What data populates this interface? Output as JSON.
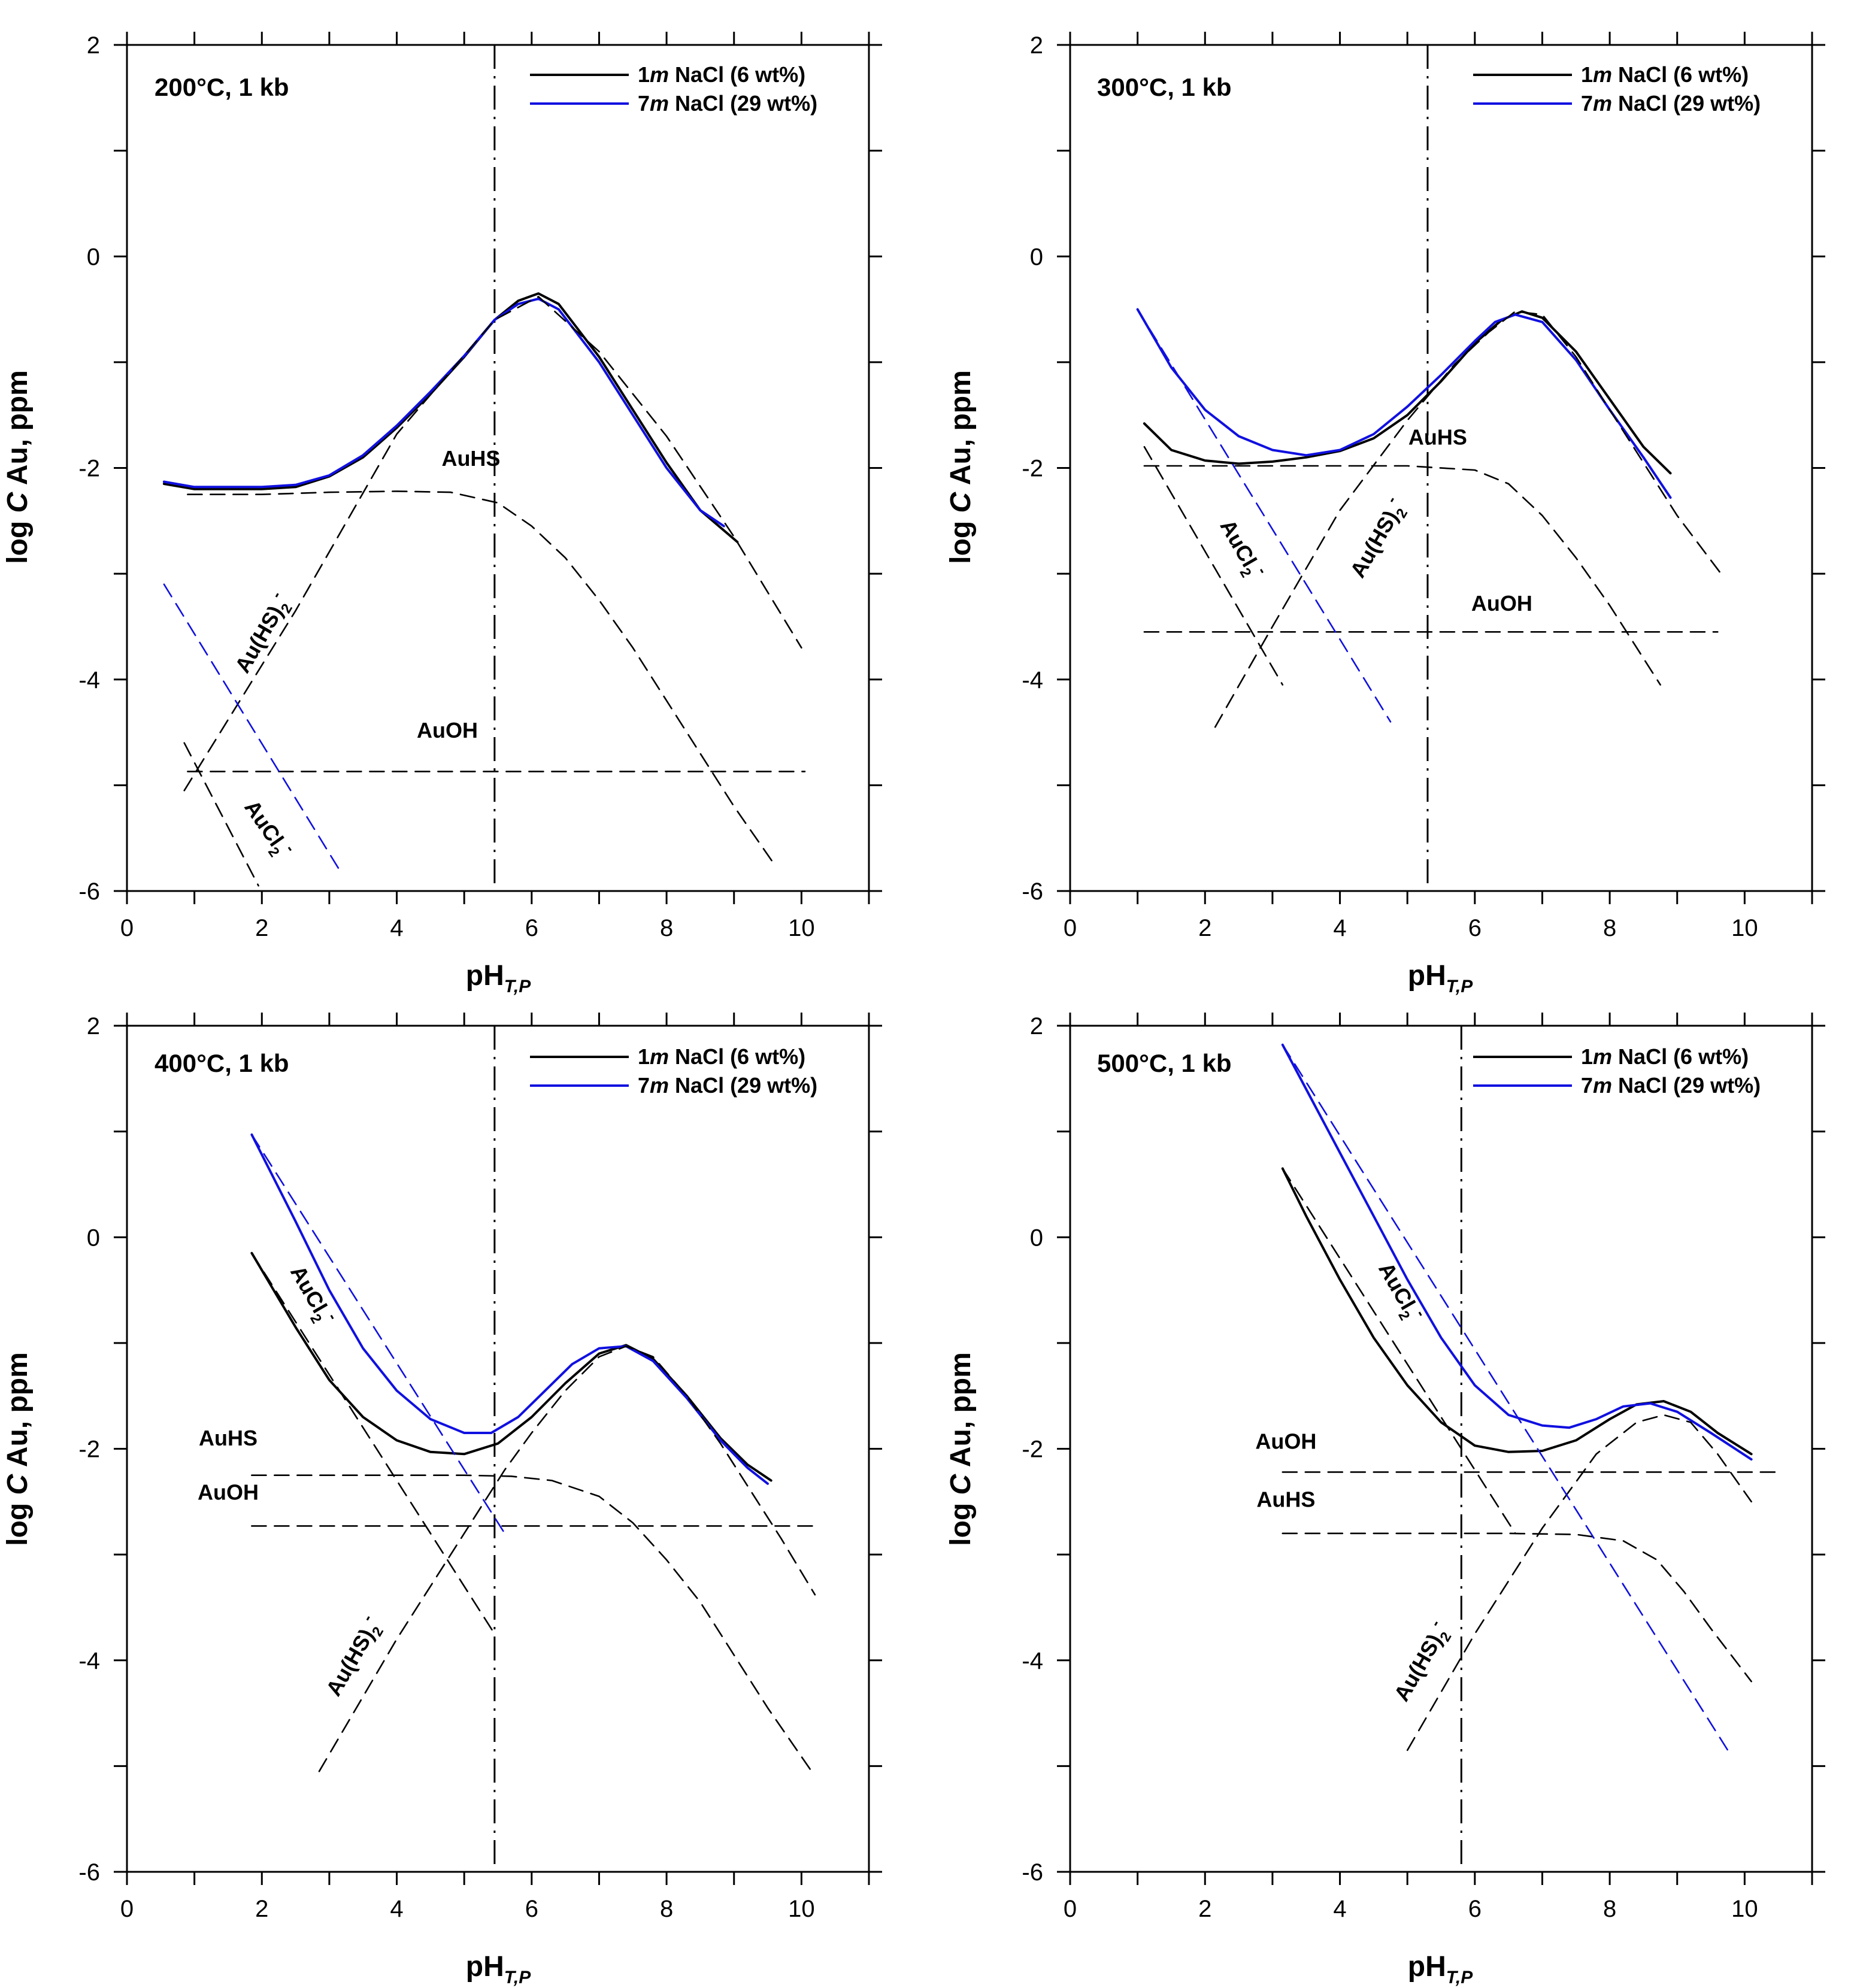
{
  "colors": {
    "black": "#000000",
    "blue": "#1010e0"
  },
  "chart_data": [
    {
      "type": "line",
      "title": "200°C, 1 kb",
      "xlabel": "pH",
      "xlabel_sub": "T,P",
      "ylabel_pre": "log ",
      "ylabel_italic": "C",
      "ylabel_post": " Au, ppm",
      "xlim": [
        0,
        11
      ],
      "ylim": [
        -6,
        2
      ],
      "xticks": [
        0,
        2,
        4,
        6,
        8,
        10
      ],
      "yticks": [
        2,
        0,
        -2,
        -4,
        -6
      ],
      "legend": [
        {
          "prefix": "1",
          "italic": "m",
          "rest": " NaCl (6 wt%)",
          "color": "#000000"
        },
        {
          "prefix": "7",
          "italic": "m",
          "rest": " NaCl (29 wt%)",
          "color": "#1010e0"
        }
      ],
      "vline_x": 5.45,
      "series": [
        {
          "name": "1m NaCl total",
          "style": "solid",
          "color": "#000000",
          "x": [
            0.55,
            1,
            2,
            2.5,
            3,
            3.5,
            4,
            4.5,
            5,
            5.45,
            5.8,
            6.1,
            6.4,
            7,
            7.5,
            8,
            8.5,
            9.05
          ],
          "y": [
            -2.15,
            -2.2,
            -2.2,
            -2.18,
            -2.08,
            -1.9,
            -1.62,
            -1.3,
            -0.95,
            -0.6,
            -0.42,
            -0.35,
            -0.45,
            -0.95,
            -1.45,
            -1.95,
            -2.4,
            -2.7
          ]
        },
        {
          "name": "7m NaCl total",
          "style": "solid",
          "color": "#1010e0",
          "x": [
            0.55,
            1,
            2,
            2.5,
            3,
            3.5,
            4,
            4.5,
            5,
            5.45,
            5.8,
            6.1,
            6.4,
            7,
            7.5,
            8,
            8.5,
            8.85
          ],
          "y": [
            -2.13,
            -2.18,
            -2.18,
            -2.16,
            -2.07,
            -1.88,
            -1.6,
            -1.28,
            -0.94,
            -0.6,
            -0.45,
            -0.4,
            -0.5,
            -1.0,
            -1.5,
            -2.0,
            -2.4,
            -2.55
          ]
        },
        {
          "name": "AuHS",
          "style": "dashed",
          "color": "#000000",
          "x": [
            0.9,
            2,
            3,
            4,
            4.8,
            5.5,
            6,
            6.5,
            7,
            7.5,
            8,
            8.5,
            9,
            9.6
          ],
          "y": [
            -2.25,
            -2.25,
            -2.23,
            -2.22,
            -2.23,
            -2.33,
            -2.55,
            -2.85,
            -3.25,
            -3.7,
            -4.2,
            -4.7,
            -5.2,
            -5.75
          ]
        },
        {
          "name": "Au(HS)2 (1m)",
          "style": "dashed",
          "color": "#000000",
          "x": [
            0.85,
            2.5,
            4,
            5.45,
            6.1,
            7,
            8,
            9,
            10
          ],
          "y": [
            -5.05,
            -3.35,
            -1.68,
            -0.6,
            -0.38,
            -0.9,
            -1.7,
            -2.65,
            -3.7
          ]
        },
        {
          "name": "AuOH",
          "style": "dashed",
          "color": "#000000",
          "x": [
            0.9,
            10.05
          ],
          "y": [
            -4.87,
            -4.87
          ]
        },
        {
          "name": "AuCl2 (1m)",
          "style": "dashed",
          "color": "#000000",
          "x": [
            0.85,
            1.95
          ],
          "y": [
            -4.6,
            -5.95
          ]
        },
        {
          "name": "AuCl2 (7m)",
          "style": "dashed",
          "color": "#1010e0",
          "x": [
            0.55,
            3.15
          ],
          "y": [
            -3.1,
            -5.8
          ]
        }
      ],
      "annotations": [
        {
          "text": "AuHS",
          "x": 5.1,
          "y": -1.98,
          "rotate": 0
        },
        {
          "text": "AuOH",
          "x": 4.75,
          "y": -4.55,
          "rotate": 0
        },
        {
          "text": "Au(HS)",
          "sub": "2",
          "sup": "-",
          "x": 2.1,
          "y": -3.6,
          "rotate": -60
        },
        {
          "text": "AuCl",
          "sub": "2",
          "sup": "-",
          "x": 2.0,
          "y": -5.45,
          "rotate": 55
        }
      ]
    },
    {
      "type": "line",
      "title": "300°C, 1 kb",
      "xlabel": "pH",
      "xlabel_sub": "T,P",
      "ylabel_pre": "log ",
      "ylabel_italic": "C",
      "ylabel_post": " Au, ppm",
      "xlim": [
        0,
        11
      ],
      "ylim": [
        -6,
        2
      ],
      "xticks": [
        0,
        2,
        4,
        6,
        8,
        10
      ],
      "yticks": [
        2,
        0,
        -2,
        -4,
        -6
      ],
      "legend": [
        {
          "prefix": "1",
          "italic": "m",
          "rest": " NaCl (6 wt%)",
          "color": "#000000"
        },
        {
          "prefix": "7",
          "italic": "m",
          "rest": " NaCl (29 wt%)",
          "color": "#1010e0"
        }
      ],
      "vline_x": 5.3,
      "series": [
        {
          "name": "1m NaCl total",
          "style": "solid",
          "color": "#000000",
          "x": [
            1.1,
            1.5,
            2,
            2.5,
            3,
            3.5,
            4,
            4.5,
            5,
            5.5,
            6,
            6.4,
            6.7,
            7,
            7.5,
            8,
            8.5,
            8.9
          ],
          "y": [
            -1.58,
            -1.83,
            -1.93,
            -1.96,
            -1.94,
            -1.9,
            -1.84,
            -1.72,
            -1.5,
            -1.18,
            -0.82,
            -0.6,
            -0.52,
            -0.58,
            -0.9,
            -1.35,
            -1.8,
            -2.05
          ]
        },
        {
          "name": "7m NaCl total",
          "style": "solid",
          "color": "#1010e0",
          "x": [
            1.0,
            1.5,
            2,
            2.5,
            3,
            3.5,
            4,
            4.5,
            5,
            5.5,
            6,
            6.3,
            6.6,
            7,
            7.5,
            8,
            8.5,
            8.9
          ],
          "y": [
            -0.5,
            -1.05,
            -1.45,
            -1.7,
            -1.83,
            -1.88,
            -1.83,
            -1.68,
            -1.42,
            -1.12,
            -0.8,
            -0.62,
            -0.55,
            -0.62,
            -0.98,
            -1.45,
            -1.9,
            -2.28
          ]
        },
        {
          "name": "AuHS",
          "style": "dashed",
          "color": "#000000",
          "x": [
            1.1,
            2,
            3,
            4,
            5,
            6,
            6.5,
            7,
            7.5,
            8,
            8.5,
            8.75
          ],
          "y": [
            -1.98,
            -1.98,
            -1.98,
            -1.98,
            -1.98,
            -2.02,
            -2.15,
            -2.45,
            -2.85,
            -3.3,
            -3.8,
            -4.05
          ]
        },
        {
          "name": "Au(HS)2 (1m)",
          "style": "dashed",
          "color": "#000000",
          "x": [
            2.15,
            3,
            4,
            5,
            5.7,
            6.2,
            6.6,
            7,
            7.5,
            8,
            8.5,
            9,
            9.65
          ],
          "y": [
            -4.45,
            -3.5,
            -2.4,
            -1.55,
            -1.02,
            -0.72,
            -0.52,
            -0.55,
            -0.95,
            -1.45,
            -1.95,
            -2.45,
            -3.0
          ]
        },
        {
          "name": "AuOH",
          "style": "dashed",
          "color": "#000000",
          "x": [
            1.1,
            9.6
          ],
          "y": [
            -3.55,
            -3.55
          ]
        },
        {
          "name": "AuCl2 (1m)",
          "style": "dashed",
          "color": "#000000",
          "x": [
            1.1,
            3.15
          ],
          "y": [
            -1.8,
            -4.05
          ]
        },
        {
          "name": "AuCl2 (7m)",
          "style": "dashed",
          "color": "#1010e0",
          "x": [
            1.0,
            4.75
          ],
          "y": [
            -0.5,
            -4.4
          ]
        }
      ],
      "annotations": [
        {
          "text": "AuHS",
          "x": 5.45,
          "y": -1.78,
          "rotate": 0
        },
        {
          "text": "AuOH",
          "x": 6.4,
          "y": -3.35,
          "rotate": 0
        },
        {
          "text": "Au(HS)",
          "sub": "2",
          "sup": "-",
          "x": 4.65,
          "y": -2.7,
          "rotate": -60
        },
        {
          "text": "AuCl",
          "sub": "2",
          "sup": "-",
          "x": 2.45,
          "y": -2.8,
          "rotate": 60
        }
      ]
    },
    {
      "type": "line",
      "title": "400°C, 1 kb",
      "xlabel": "pH",
      "xlabel_sub": "T,P",
      "ylabel_pre": "log ",
      "ylabel_italic": "C",
      "ylabel_post": " Au, ppm",
      "xlim": [
        0,
        11
      ],
      "ylim": [
        -6,
        2
      ],
      "xticks": [
        0,
        2,
        4,
        6,
        8,
        10
      ],
      "yticks": [
        2,
        0,
        -2,
        -4,
        -6
      ],
      "legend": [
        {
          "prefix": "1",
          "italic": "m",
          "rest": " NaCl (6 wt%)",
          "color": "#000000"
        },
        {
          "prefix": "7",
          "italic": "m",
          "rest": " NaCl (29 wt%)",
          "color": "#1010e0"
        }
      ],
      "vline_x": 5.45,
      "series": [
        {
          "name": "1m NaCl total",
          "style": "solid",
          "color": "#000000",
          "x": [
            1.85,
            2.5,
            3,
            3.5,
            4,
            4.5,
            5,
            5.5,
            6,
            6.5,
            7,
            7.4,
            7.8,
            8.3,
            8.8,
            9.2,
            9.55
          ],
          "y": [
            -0.15,
            -0.85,
            -1.35,
            -1.7,
            -1.92,
            -2.03,
            -2.05,
            -1.95,
            -1.7,
            -1.38,
            -1.1,
            -1.02,
            -1.15,
            -1.5,
            -1.9,
            -2.15,
            -2.3
          ]
        },
        {
          "name": "7m NaCl total",
          "style": "solid",
          "color": "#1010e0",
          "x": [
            1.85,
            2.5,
            3,
            3.5,
            4,
            4.5,
            5,
            5.4,
            5.8,
            6.2,
            6.6,
            7,
            7.4,
            7.8,
            8.3,
            8.8,
            9.2,
            9.5
          ],
          "y": [
            0.97,
            0.15,
            -0.5,
            -1.05,
            -1.45,
            -1.72,
            -1.85,
            -1.85,
            -1.7,
            -1.45,
            -1.2,
            -1.05,
            -1.03,
            -1.17,
            -1.52,
            -1.92,
            -2.18,
            -2.33
          ]
        },
        {
          "name": "AuHS",
          "style": "dashed",
          "color": "#000000",
          "x": [
            1.85,
            3,
            4,
            5,
            5.7,
            6.3,
            7,
            7.5,
            8,
            8.5,
            9,
            9.5,
            10.15
          ],
          "y": [
            -2.25,
            -2.25,
            -2.25,
            -2.25,
            -2.26,
            -2.3,
            -2.45,
            -2.7,
            -3.05,
            -3.45,
            -3.95,
            -4.45,
            -5.05
          ]
        },
        {
          "name": "Au(HS)2 (1m)",
          "style": "dashed",
          "color": "#000000",
          "x": [
            2.85,
            4,
            5,
            5.6,
            6,
            6.5,
            7,
            7.4,
            7.8,
            8.3,
            8.8,
            9.3,
            9.7,
            10.2
          ],
          "y": [
            -5.05,
            -3.8,
            -2.8,
            -2.2,
            -1.85,
            -1.45,
            -1.13,
            -1.03,
            -1.13,
            -1.5,
            -1.95,
            -2.45,
            -2.85,
            -3.38
          ]
        },
        {
          "name": "AuOH",
          "style": "dashed",
          "color": "#000000",
          "x": [
            1.85,
            10.2
          ],
          "y": [
            -2.73,
            -2.73
          ]
        },
        {
          "name": "AuCl2 (1m)",
          "style": "dashed",
          "color": "#000000",
          "x": [
            1.85,
            5.45
          ],
          "y": [
            -0.15,
            -3.75
          ]
        },
        {
          "name": "AuCl2 (7m)",
          "style": "dashed",
          "color": "#1010e0",
          "x": [
            1.85,
            5.6
          ],
          "y": [
            0.97,
            -2.8
          ]
        }
      ],
      "annotations": [
        {
          "text": "AuHS",
          "x": 1.5,
          "y": -1.97,
          "rotate": 0
        },
        {
          "text": "AuOH",
          "x": 1.5,
          "y": -2.48,
          "rotate": 0
        },
        {
          "text": "Au(HS)",
          "sub": "2",
          "sup": "-",
          "x": 3.45,
          "y": -4.0,
          "rotate": -60
        },
        {
          "text": "AuCl",
          "sub": "2",
          "sup": "-",
          "x": 2.65,
          "y": -0.58,
          "rotate": 60
        }
      ]
    },
    {
      "type": "line",
      "title": "500°C, 1 kb",
      "xlabel": "pH",
      "xlabel_sub": "T,P",
      "ylabel_pre": "log ",
      "ylabel_italic": "C",
      "ylabel_post": " Au, ppm",
      "xlim": [
        0,
        11
      ],
      "ylim": [
        -6,
        2
      ],
      "xticks": [
        0,
        2,
        4,
        6,
        8,
        10
      ],
      "yticks": [
        2,
        0,
        -2,
        -4,
        -6
      ],
      "legend": [
        {
          "prefix": "1",
          "italic": "m",
          "rest": " NaCl (6 wt%)",
          "color": "#000000"
        },
        {
          "prefix": "7",
          "italic": "m",
          "rest": " NaCl (29 wt%)",
          "color": "#1010e0"
        }
      ],
      "vline_x": 5.8,
      "series": [
        {
          "name": "1m NaCl total",
          "style": "solid",
          "color": "#000000",
          "x": [
            3.15,
            3.5,
            4,
            4.5,
            5,
            5.5,
            6,
            6.5,
            7,
            7.5,
            8,
            8.4,
            8.8,
            9.2,
            9.6,
            10.1
          ],
          "y": [
            0.65,
            0.2,
            -0.4,
            -0.95,
            -1.4,
            -1.75,
            -1.97,
            -2.03,
            -2.02,
            -1.92,
            -1.72,
            -1.58,
            -1.55,
            -1.65,
            -1.85,
            -2.05
          ]
        },
        {
          "name": "7m NaCl total",
          "style": "solid",
          "color": "#1010e0",
          "x": [
            3.15,
            3.5,
            4,
            4.5,
            5,
            5.5,
            6,
            6.5,
            7,
            7.4,
            7.8,
            8.2,
            8.6,
            9,
            9.5,
            10.1
          ],
          "y": [
            1.82,
            1.4,
            0.8,
            0.2,
            -0.4,
            -0.95,
            -1.4,
            -1.68,
            -1.78,
            -1.8,
            -1.72,
            -1.6,
            -1.57,
            -1.65,
            -1.85,
            -2.1
          ]
        },
        {
          "name": "AuHS",
          "style": "dashed",
          "color": "#000000",
          "x": [
            3.15,
            5,
            6.5,
            7.5,
            8.2,
            8.7,
            9.1,
            9.5,
            9.8,
            10.1
          ],
          "y": [
            -2.8,
            -2.8,
            -2.8,
            -2.81,
            -2.87,
            -3.05,
            -3.35,
            -3.7,
            -3.95,
            -4.2
          ]
        },
        {
          "name": "Au(HS)2 (1m)",
          "style": "dashed",
          "color": "#000000",
          "x": [
            5.0,
            6,
            7,
            7.8,
            8.4,
            8.8,
            9.2,
            9.6,
            10.1
          ],
          "y": [
            -4.85,
            -3.75,
            -2.75,
            -2.05,
            -1.75,
            -1.68,
            -1.75,
            -2.05,
            -2.5
          ]
        },
        {
          "name": "AuOH",
          "style": "dashed",
          "color": "#000000",
          "x": [
            3.15,
            10.55
          ],
          "y": [
            -2.22,
            -2.22
          ]
        },
        {
          "name": "AuCl2 (1m)",
          "style": "dashed",
          "color": "#000000",
          "x": [
            3.15,
            6.6
          ],
          "y": [
            0.65,
            -2.8
          ]
        },
        {
          "name": "AuCl2 (7m)",
          "style": "dashed",
          "color": "#1010e0",
          "x": [
            3.15,
            9.75
          ],
          "y": [
            1.82,
            -4.85
          ]
        }
      ],
      "annotations": [
        {
          "text": "AuOH",
          "x": 3.2,
          "y": -2.0,
          "rotate": 0
        },
        {
          "text": "AuHS",
          "x": 3.2,
          "y": -2.55,
          "rotate": 0
        },
        {
          "text": "Au(HS)",
          "sub": "2",
          "sup": "-",
          "x": 5.3,
          "y": -4.05,
          "rotate": -60
        },
        {
          "text": "AuCl",
          "sub": "2",
          "sup": "-",
          "x": 4.8,
          "y": -0.55,
          "rotate": 60
        }
      ]
    }
  ]
}
